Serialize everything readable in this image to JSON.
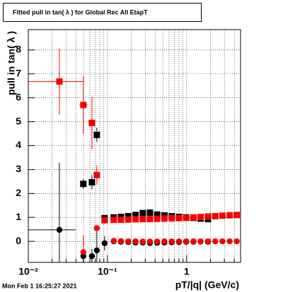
{
  "chart_data": {
    "type": "errorbar",
    "title": "Fitted pull in tan( λ ) for Global Rec All EtapT",
    "x_label": "pT/|q| (GeV/c)",
    "y_label": "pull in tan( λ )",
    "footer": "Mon Feb  1 16:25:27 2021",
    "xlog": true,
    "grid": true,
    "xlim": [
      0.01,
      4.8
    ],
    "ylim": [
      -0.88,
      8.85
    ],
    "xticks": [
      {
        "value": 0.01,
        "label": "10⁻²"
      },
      {
        "value": 0.1,
        "label": "10⁻¹"
      },
      1
    ],
    "xminorticks": [
      0.02,
      0.03,
      0.04,
      0.05,
      0.06,
      0.07,
      0.08,
      0.09,
      0.2,
      0.3,
      0.4,
      0.5,
      0.6,
      0.7,
      0.8,
      0.9,
      2,
      3,
      4
    ],
    "yticks": [
      0,
      1,
      2,
      3,
      4,
      5,
      6,
      7,
      8
    ],
    "series": [
      {
        "color": "#000000",
        "marker": "square",
        "x": [
          0.0496,
          0.0636,
          0.0734,
          0.092,
          0.12,
          0.148,
          0.183,
          0.226,
          0.279,
          0.344,
          0.425,
          0.525,
          0.648,
          0.8,
          0.988,
          1.22,
          1.5,
          1.86
        ],
        "values": [
          2.4,
          2.47,
          4.45,
          0.97,
          1.0,
          1.02,
          1.05,
          1.1,
          1.18,
          1.2,
          1.12,
          1.08,
          1.05,
          1.02,
          1.0,
          0.98,
          0.95,
          0.93
        ],
        "yerr": [
          0.2,
          0.3,
          0.3,
          0.1,
          0.05,
          0.05,
          0.05,
          0.05,
          0.05,
          0.05,
          0.05,
          0.05,
          0.05,
          0.05,
          0.05,
          0.05,
          0.05,
          0.05
        ],
        "xlow": [
          0.046,
          0.06,
          null,
          null,
          null,
          null,
          null,
          null,
          null,
          null,
          null,
          null,
          null,
          null,
          null,
          null,
          null,
          null
        ],
        "xhigh": [
          0.054,
          0.067,
          null,
          null,
          null,
          null,
          null,
          null,
          null,
          null,
          null,
          null,
          null,
          null,
          null,
          null,
          null,
          null
        ]
      },
      {
        "color": "#000000",
        "marker": "circle",
        "x": [
          0.0247,
          0.0496,
          0.0636,
          0.0734,
          0.092,
          0.12,
          0.148,
          0.183,
          0.226,
          0.279,
          0.344,
          0.425,
          0.525,
          0.648,
          0.8,
          0.988,
          1.22,
          1.5,
          1.86
        ],
        "values": [
          0.48,
          -0.62,
          -0.62,
          -0.38,
          -0.08,
          0.0,
          -0.02,
          -0.03,
          -0.05,
          -0.05,
          -0.07,
          -0.06,
          -0.05,
          -0.04,
          -0.03,
          -0.02,
          -0.02,
          -0.01,
          -0.02
        ],
        "yerr": [
          2.8,
          0.3,
          0.3,
          0.8,
          0.3,
          0.05,
          0.05,
          0.05,
          0.05,
          0.05,
          0.05,
          0.05,
          0.05,
          0.05,
          0.05,
          0.05,
          0.05,
          0.05,
          0.05
        ],
        "xlow": [
          0.01,
          null,
          null,
          null,
          null,
          null,
          null,
          null,
          null,
          null,
          null,
          null,
          null,
          null,
          null,
          null,
          null,
          null,
          null
        ],
        "xhigh": [
          0.0397,
          null,
          null,
          null,
          null,
          null,
          null,
          null,
          null,
          null,
          null,
          null,
          null,
          null,
          null,
          null,
          null,
          null,
          null
        ]
      },
      {
        "color": "#ff0000",
        "marker": "square",
        "x": [
          0.0247,
          0.0496,
          0.0636,
          0.0734,
          0.092,
          0.12,
          0.148,
          0.183,
          0.226,
          0.279,
          0.344,
          0.425,
          0.525,
          0.648,
          0.8,
          0.988,
          1.22,
          1.5,
          1.86,
          2.3,
          2.83,
          3.5,
          4.3
        ],
        "values": [
          6.68,
          5.7,
          4.95,
          2.77,
          0.88,
          0.9,
          0.9,
          0.91,
          0.92,
          0.93,
          0.93,
          0.94,
          0.95,
          0.96,
          0.97,
          0.98,
          1.0,
          1.02,
          1.04,
          1.05,
          1.07,
          1.09,
          1.1
        ],
        "yerr": [
          1.37,
          1.2,
          1.1,
          0.4,
          0.1,
          0.04,
          0.04,
          0.04,
          0.04,
          0.04,
          0.04,
          0.04,
          0.04,
          0.04,
          0.04,
          0.04,
          0.04,
          0.04,
          0.04,
          0.04,
          0.04,
          0.04,
          0.04
        ],
        "xlow": [
          0.01,
          0.044,
          null,
          null,
          null,
          null,
          null,
          null,
          null,
          null,
          null,
          null,
          null,
          null,
          null,
          null,
          null,
          null,
          null,
          null,
          null,
          null,
          null
        ],
        "xhigh": [
          0.0496,
          0.056,
          null,
          null,
          null,
          null,
          null,
          null,
          null,
          null,
          null,
          null,
          null,
          null,
          null,
          null,
          null,
          null,
          null,
          null,
          null,
          null,
          null
        ]
      },
      {
        "color": "#ff0000",
        "marker": "circle",
        "x": [
          0.0496,
          0.0734,
          0.12,
          0.148,
          0.183,
          0.226,
          0.279,
          0.344,
          0.425,
          0.525,
          0.648,
          0.8,
          0.988,
          1.22,
          1.5,
          1.86,
          2.3,
          2.83,
          3.5,
          4.3
        ],
        "values": [
          -0.45,
          0.55,
          0.02,
          0.01,
          0.0,
          0.0,
          -0.01,
          -0.01,
          -0.01,
          0.0,
          0.0,
          0.0,
          0.0,
          0.0,
          0.0,
          0.0,
          0.0,
          0.0,
          0.0,
          0.0
        ],
        "yerr": [
          0.7,
          0.1,
          0.04,
          0.04,
          0.04,
          0.04,
          0.04,
          0.04,
          0.04,
          0.04,
          0.04,
          0.04,
          0.04,
          0.04,
          0.04,
          0.04,
          0.04,
          0.04,
          0.04,
          0.04
        ],
        "xlow": [
          null,
          null,
          null,
          null,
          null,
          null,
          null,
          null,
          null,
          null,
          null,
          null,
          null,
          null,
          null,
          null,
          null,
          null,
          null,
          null
        ],
        "xhigh": [
          null,
          null,
          null,
          null,
          null,
          null,
          null,
          null,
          null,
          null,
          null,
          null,
          null,
          null,
          null,
          null,
          null,
          null,
          null,
          null
        ]
      }
    ]
  }
}
